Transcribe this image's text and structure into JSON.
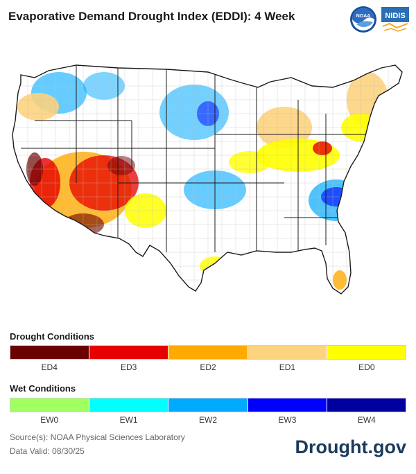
{
  "title": "Evaporative Demand Drought Index (EDDI): 4 Week",
  "logos": {
    "noaa": "NOAA",
    "nidis": "NIDIS"
  },
  "legend": {
    "drought_heading": "Drought Conditions",
    "drought": [
      {
        "label": "ED4",
        "color": "#6b0000"
      },
      {
        "label": "ED3",
        "color": "#e60000"
      },
      {
        "label": "ED2",
        "color": "#ffaa00"
      },
      {
        "label": "ED1",
        "color": "#fcd37f"
      },
      {
        "label": "ED0",
        "color": "#ffff00"
      }
    ],
    "wet_heading": "Wet Conditions",
    "wet": [
      {
        "label": "EW0",
        "color": "#a1ff5f"
      },
      {
        "label": "EW1",
        "color": "#00ffff"
      },
      {
        "label": "EW2",
        "color": "#00aaff"
      },
      {
        "label": "EW3",
        "color": "#0000ff"
      },
      {
        "label": "EW4",
        "color": "#0000a0"
      }
    ]
  },
  "source": "Source(s): NOAA Physical Sciences Laboratory",
  "valid": "Data Valid: 08/30/25",
  "brand": "Drought.gov"
}
